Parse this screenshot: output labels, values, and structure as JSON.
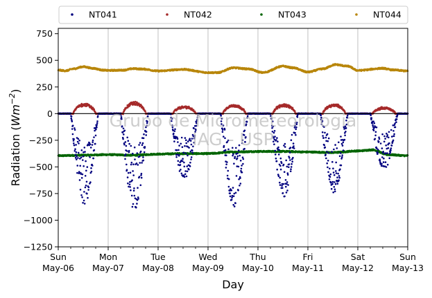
{
  "chart_data": {
    "type": "scatter",
    "xlabel": "Day",
    "ylabel": "Radiation (Wm−2)",
    "ylabel_main": "Radiation (",
    "ylabel_unit": "Wm",
    "ylabel_exp": "−2",
    "ylabel_close": ")",
    "xlim": [
      0,
      7
    ],
    "ylim": [
      -1250,
      800
    ],
    "yticks": [
      -1250,
      -1000,
      -750,
      -500,
      -250,
      0,
      250,
      500,
      750
    ],
    "ytick_labels": [
      "−1250",
      "−1000",
      "−750",
      "−500",
      "−250",
      "0",
      "250",
      "500",
      "750"
    ],
    "xticks": [
      {
        "pos": 0,
        "day": "Sun",
        "date": "May-06"
      },
      {
        "pos": 1,
        "day": "Mon",
        "date": "May-07"
      },
      {
        "pos": 2,
        "day": "Tue",
        "date": "May-08"
      },
      {
        "pos": 3,
        "day": "Wed",
        "date": "May-09"
      },
      {
        "pos": 4,
        "day": "Thu",
        "date": "May-10"
      },
      {
        "pos": 5,
        "day": "Fri",
        "date": "May-11"
      },
      {
        "pos": 6,
        "day": "Sat",
        "date": "May-12"
      },
      {
        "pos": 7,
        "day": "Sun",
        "date": "May-13"
      }
    ],
    "grid": "vertical",
    "legend_position": "top",
    "watermark": [
      "Grupo de Micrometeorologia",
      "IAG - USP"
    ],
    "series": [
      {
        "name": "NT041",
        "color": "#00007f",
        "profile": "daytime_dip",
        "baseline": 0,
        "day_peaks": [
          -850,
          -900,
          -650,
          -880,
          -790,
          -750,
          -530
        ],
        "day_start": 0.25,
        "day_end": 0.8
      },
      {
        "name": "NT042",
        "color": "#a52a2a",
        "profile": "daytime_bump",
        "baseline": 0,
        "day_peaks": [
          95,
          110,
          70,
          85,
          90,
          90,
          60
        ],
        "day_start": 0.3,
        "day_end": 0.75
      },
      {
        "name": "NT043",
        "color": "#006400",
        "profile": "smooth",
        "knots": [
          [
            0,
            -395
          ],
          [
            0.5,
            -390
          ],
          [
            1,
            -385
          ],
          [
            1.5,
            -390
          ],
          [
            2,
            -380
          ],
          [
            2.5,
            -375
          ],
          [
            3,
            -375
          ],
          [
            3.5,
            -360
          ],
          [
            4,
            -355
          ],
          [
            4.5,
            -355
          ],
          [
            5,
            -360
          ],
          [
            5.5,
            -365
          ],
          [
            6,
            -350
          ],
          [
            6.3,
            -340
          ],
          [
            6.6,
            -385
          ],
          [
            7,
            -395
          ]
        ]
      },
      {
        "name": "NT044",
        "color": "#b8860b",
        "profile": "smooth",
        "knots": [
          [
            0,
            408
          ],
          [
            0.15,
            402
          ],
          [
            0.3,
            420
          ],
          [
            0.5,
            440
          ],
          [
            0.7,
            425
          ],
          [
            0.9,
            408
          ],
          [
            1.0,
            405
          ],
          [
            1.3,
            408
          ],
          [
            1.5,
            422
          ],
          [
            1.7,
            418
          ],
          [
            2.0,
            400
          ],
          [
            2.5,
            415
          ],
          [
            3.0,
            385
          ],
          [
            3.2,
            385
          ],
          [
            3.5,
            430
          ],
          [
            3.8,
            420
          ],
          [
            4.1,
            385
          ],
          [
            4.5,
            445
          ],
          [
            4.7,
            430
          ],
          [
            5.0,
            390
          ],
          [
            5.3,
            420
          ],
          [
            5.55,
            460
          ],
          [
            5.8,
            445
          ],
          [
            6.0,
            405
          ],
          [
            6.5,
            425
          ],
          [
            6.7,
            410
          ],
          [
            7.0,
            400
          ]
        ]
      }
    ]
  }
}
